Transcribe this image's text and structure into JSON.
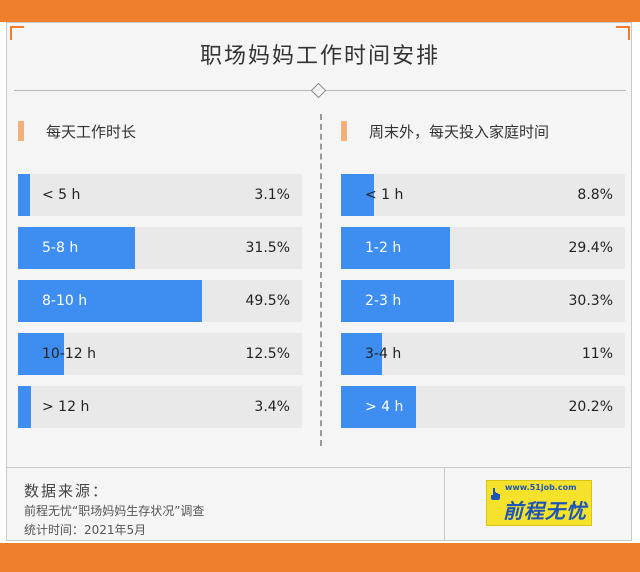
{
  "title": "职场妈妈工作时间安排",
  "chart_data": [
    {
      "type": "bar",
      "title": "每天工作时长",
      "categories": [
        "< 5 h",
        "5-8 h",
        "8-10 h",
        "10-12 h",
        "> 12 h"
      ],
      "values": [
        3.1,
        31.5,
        49.5,
        12.5,
        3.4
      ],
      "value_labels": [
        "3.1%",
        "31.5%",
        "49.5%",
        "12.5%",
        "3.4%"
      ],
      "unit": "%",
      "orientation": "horizontal",
      "color": "#3d8ef0"
    },
    {
      "type": "bar",
      "title": "周末外，每天投入家庭时间",
      "categories": [
        "< 1 h",
        "1-2 h",
        "2-3 h",
        "3-4 h",
        "> 4 h"
      ],
      "values": [
        8.8,
        29.4,
        30.3,
        11,
        20.2
      ],
      "value_labels": [
        "8.8%",
        "29.4%",
        "30.3%",
        "11%",
        "20.2%"
      ],
      "unit": "%",
      "orientation": "horizontal",
      "color": "#3d8ef0"
    }
  ],
  "source": {
    "heading": "数据来源：",
    "line1": "前程无忧“职场妈妈生存状况”调查",
    "line2": "统计时间：2021年5月"
  },
  "logo": {
    "url": "www.51job.com",
    "brand": "前程无忧"
  },
  "colors": {
    "accent": "#ef7f2d",
    "bar": "#3d8ef0",
    "track": "#e9e9e9"
  }
}
